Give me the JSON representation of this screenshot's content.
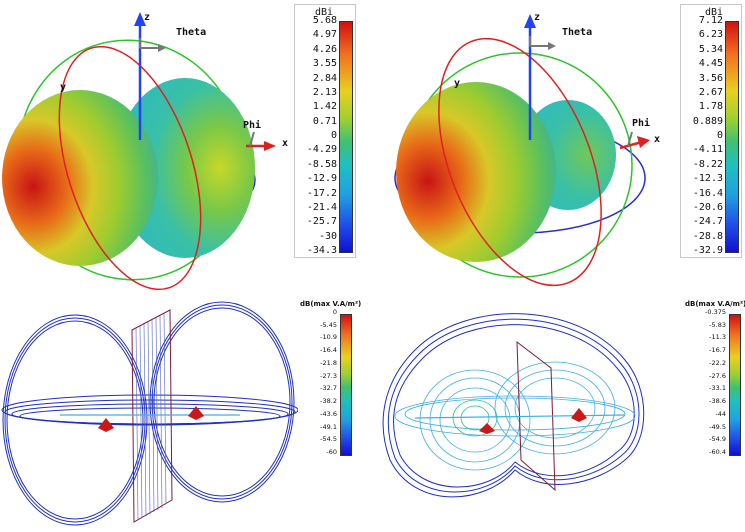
{
  "top_left": {
    "axes": {
      "z": "z",
      "y": "y",
      "x": "x",
      "theta": "Theta",
      "phi": "Phi"
    },
    "legend": {
      "unit": "dBi",
      "ticks": [
        "5.68",
        "4.97",
        "4.26",
        "3.55",
        "2.84",
        "2.13",
        "1.42",
        "0.71",
        "0",
        "-4.29",
        "-8.58",
        "-12.9",
        "-17.2",
        "-21.4",
        "-25.7",
        "-30",
        "-34.3"
      ]
    }
  },
  "top_right": {
    "axes": {
      "z": "z",
      "y": "y",
      "x": "x",
      "theta": "Theta",
      "phi": "Phi"
    },
    "legend": {
      "unit": "dBi",
      "ticks": [
        "7.12",
        "6.23",
        "5.34",
        "4.45",
        "3.56",
        "2.67",
        "1.78",
        "0.889",
        "0",
        "-4.11",
        "-8.22",
        "-12.3",
        "-16.4",
        "-20.6",
        "-24.7",
        "-28.8",
        "-32.9"
      ]
    }
  },
  "bottom_left": {
    "legend": {
      "unit": "dB(max V.A/m²)",
      "ticks": [
        "0",
        "-5.45",
        "-10.9",
        "-16.4",
        "-21.8",
        "-27.3",
        "-32.7",
        "-38.2",
        "-43.6",
        "-49.1",
        "-54.5",
        "-60"
      ]
    }
  },
  "bottom_right": {
    "legend": {
      "unit": "dB(max V.A/m²)",
      "ticks": [
        "-0.375",
        "-5.83",
        "-11.3",
        "-16.7",
        "-22.2",
        "-27.6",
        "-33.1",
        "-38.6",
        "-44",
        "-49.5",
        "-54.9",
        "-60.4"
      ]
    }
  },
  "colors": {
    "ring_x": "#2b2bd8",
    "ring_y": "#2bc42b",
    "ring_z": "#e02020",
    "axis_arrow": "#2244ee",
    "field_line": "#2030c0",
    "field_line_light": "#40b0e0",
    "marker": "#c81818"
  }
}
